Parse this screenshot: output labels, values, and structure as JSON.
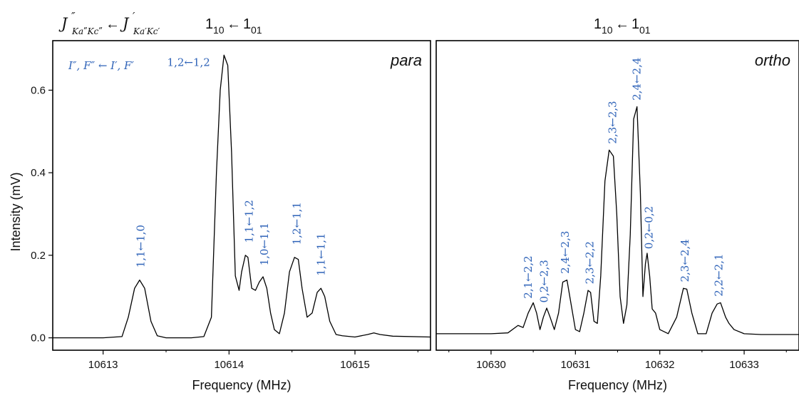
{
  "header": {
    "left_notation": {
      "J1": "J",
      "sup1": "″",
      "sub1": "KaʺKcʺ",
      "arrow": "←",
      "J2": "J",
      "sup2": "′",
      "sub2": "Ka′Kc′"
    },
    "left_transition": {
      "a": "1",
      "a_sub": "10",
      "arrow": "←",
      "b": "1",
      "b_sub": "01"
    },
    "right_transition": {
      "a": "1",
      "a_sub": "10",
      "arrow": "←",
      "b": "1",
      "b_sub": "01"
    }
  },
  "chart_data": [
    {
      "type": "line",
      "panel_label": "para",
      "legend_note": "I″, F″ ← I′, F′",
      "xlabel": "Frequency (MHz)",
      "ylabel": "Intensity (mV)",
      "xlim": [
        10612.6,
        10615.6
      ],
      "ylim": [
        -0.03,
        0.72
      ],
      "xticks": [
        10613,
        10614,
        10615
      ],
      "yticks": [
        0.0,
        0.2,
        0.4,
        0.6
      ],
      "ytick_labels": [
        "0.0",
        "0.2",
        "0.4",
        "0.6"
      ],
      "grid": false,
      "series": [
        {
          "x": [
            10612.6,
            10613.0,
            10613.15,
            10613.2,
            10613.25,
            10613.29,
            10613.33,
            10613.38,
            10613.43,
            10613.5,
            10613.6,
            10613.7,
            10613.8,
            10613.86,
            10613.9,
            10613.93,
            10613.96,
            10613.99,
            10614.02,
            10614.05,
            10614.08,
            10614.1,
            10614.13,
            10614.15,
            10614.18,
            10614.21,
            10614.24,
            10614.27,
            10614.3,
            10614.33,
            10614.36,
            10614.4,
            10614.44,
            10614.48,
            10614.52,
            10614.55,
            10614.58,
            10614.62,
            10614.66,
            10614.7,
            10614.73,
            10614.76,
            10614.8,
            10614.85,
            10614.9,
            10615.0,
            10615.1,
            10615.15,
            10615.2,
            10615.3,
            10615.6
          ],
          "y": [
            0.0,
            0.0,
            0.003,
            0.05,
            0.12,
            0.14,
            0.12,
            0.04,
            0.005,
            0.0,
            0.0,
            0.0,
            0.003,
            0.05,
            0.4,
            0.6,
            0.685,
            0.66,
            0.45,
            0.15,
            0.115,
            0.16,
            0.2,
            0.195,
            0.12,
            0.115,
            0.135,
            0.148,
            0.12,
            0.06,
            0.02,
            0.01,
            0.06,
            0.16,
            0.195,
            0.19,
            0.12,
            0.05,
            0.06,
            0.11,
            0.12,
            0.1,
            0.04,
            0.008,
            0.005,
            0.002,
            0.008,
            0.012,
            0.008,
            0.004,
            0.002
          ]
        }
      ],
      "annotations": [
        {
          "text": "1,1←1,0",
          "x": 10613.3,
          "y": 0.17
        },
        {
          "text": "1,2←1,2",
          "x": 10613.85,
          "y": 0.655
        },
        {
          "text": "1,1←1,2",
          "x": 10614.16,
          "y": 0.23
        },
        {
          "text": "1,0←1,1",
          "x": 10614.28,
          "y": 0.175
        },
        {
          "text": "1,2←1,1",
          "x": 10614.54,
          "y": 0.225
        },
        {
          "text": "1,1←1,1",
          "x": 10614.73,
          "y": 0.15
        }
      ]
    },
    {
      "type": "line",
      "panel_label": "ortho",
      "xlabel": "Frequency (MHz)",
      "ylabel": "",
      "xlim": [
        10629.35,
        10633.65
      ],
      "ylim": [
        -0.03,
        0.72
      ],
      "xticks": [
        10630,
        10631,
        10632,
        10633
      ],
      "grid": false,
      "series": [
        {
          "x": [
            10629.35,
            10630.0,
            10630.2,
            10630.32,
            10630.38,
            10630.44,
            10630.5,
            10630.54,
            10630.58,
            10630.62,
            10630.66,
            10630.7,
            10630.75,
            10630.8,
            10630.85,
            10630.9,
            10630.95,
            10631.0,
            10631.05,
            10631.1,
            10631.15,
            10631.18,
            10631.22,
            10631.26,
            10631.3,
            10631.35,
            10631.4,
            10631.45,
            10631.49,
            10631.53,
            10631.57,
            10631.61,
            10631.65,
            10631.69,
            10631.73,
            10631.77,
            10631.8,
            10631.83,
            10631.85,
            10631.88,
            10631.91,
            10631.95,
            10632.0,
            10632.1,
            10632.2,
            10632.28,
            10632.32,
            10632.38,
            10632.45,
            10632.55,
            10632.62,
            10632.68,
            10632.72,
            10632.78,
            10632.82,
            10632.88,
            10633.0,
            10633.2,
            10633.65
          ],
          "y": [
            0.01,
            0.01,
            0.012,
            0.03,
            0.025,
            0.06,
            0.085,
            0.06,
            0.02,
            0.05,
            0.072,
            0.05,
            0.02,
            0.06,
            0.135,
            0.14,
            0.08,
            0.02,
            0.015,
            0.06,
            0.115,
            0.11,
            0.04,
            0.035,
            0.15,
            0.38,
            0.455,
            0.44,
            0.3,
            0.1,
            0.035,
            0.08,
            0.25,
            0.53,
            0.56,
            0.35,
            0.1,
            0.18,
            0.205,
            0.15,
            0.07,
            0.06,
            0.02,
            0.01,
            0.05,
            0.12,
            0.118,
            0.06,
            0.01,
            0.01,
            0.06,
            0.082,
            0.085,
            0.05,
            0.035,
            0.02,
            0.01,
            0.008,
            0.008
          ]
        }
      ],
      "annotations": [
        {
          "text": "2,1←2,2",
          "x": 10630.44,
          "y": 0.095
        },
        {
          "text": "0,2←2,3",
          "x": 10630.63,
          "y": 0.085
        },
        {
          "text": "2,4←2,3",
          "x": 10630.88,
          "y": 0.155
        },
        {
          "text": "2,3←2,2",
          "x": 10631.17,
          "y": 0.13
        },
        {
          "text": "2,3←2,3",
          "x": 10631.44,
          "y": 0.47
        },
        {
          "text": "2,4←2,4",
          "x": 10631.73,
          "y": 0.575
        },
        {
          "text": "0,2←0,2",
          "x": 10631.87,
          "y": 0.215
        },
        {
          "text": "2,3←2,4",
          "x": 10632.3,
          "y": 0.135
        },
        {
          "text": "2,2←2,1",
          "x": 10632.7,
          "y": 0.1
        }
      ]
    }
  ]
}
